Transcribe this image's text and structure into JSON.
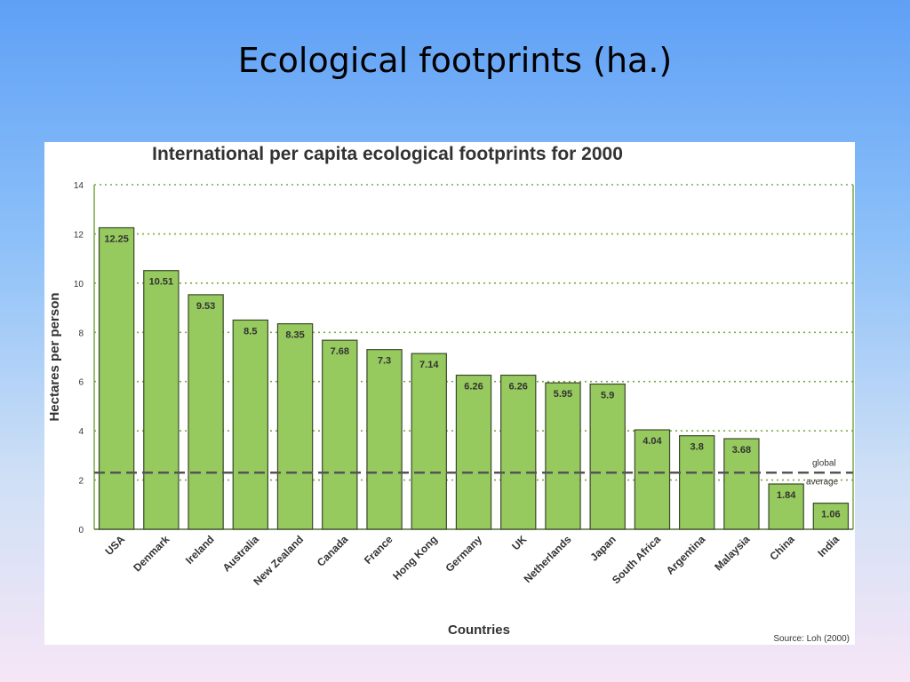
{
  "slide": {
    "title": "Ecological footprints (ha.)"
  },
  "chart_data": {
    "type": "bar",
    "title": "International per capita ecological footprints for 2000",
    "xlabel": "Countries",
    "ylabel": "Hectares per person",
    "ylim": [
      0,
      14
    ],
    "yticks": [
      "0",
      "2",
      "4",
      "6",
      "8",
      "10",
      "12",
      "14"
    ],
    "categories": [
      "USA",
      "Denmark",
      "Ireland",
      "Australia",
      "New Zealand",
      "Canada",
      "France",
      "Hong Kong",
      "Germany",
      "UK",
      "Netherlands",
      "Japan",
      "South Africa",
      "Argentina",
      "Malaysia",
      "China",
      "India"
    ],
    "values": [
      12.25,
      10.51,
      9.53,
      8.5,
      8.35,
      7.68,
      7.3,
      7.14,
      6.26,
      6.26,
      5.95,
      5.9,
      4.04,
      3.8,
      3.68,
      1.84,
      1.06
    ],
    "data_labels": [
      "12.25",
      "10.51",
      "9.53",
      "8.5",
      "8.35",
      "7.68",
      "7.3",
      "7.14",
      "6.26",
      "6.26",
      "5.95",
      "5.9",
      "4.04",
      "3.8",
      "3.68",
      "1.84",
      "1.06"
    ],
    "reference_line": {
      "value": 2.3,
      "label_line1": "global",
      "label_line2": "average"
    },
    "source": "Source: Loh (2000)",
    "grid": true,
    "colors": {
      "bar": "#96c95e",
      "bar_edge": "#3a4a2a",
      "grid": "#7aa84a",
      "reference": "#555555"
    }
  }
}
